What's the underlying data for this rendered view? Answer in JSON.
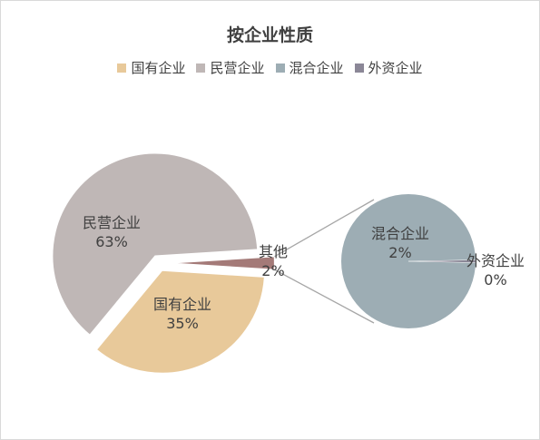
{
  "chart_data": {
    "type": "pie",
    "subtype": "pie-of-pie",
    "title": "按企业性质",
    "legend_position": "top",
    "legend": [
      {
        "label": "国有企业",
        "color": "#e8c99a"
      },
      {
        "label": "民营企业",
        "color": "#bfb7b6"
      },
      {
        "label": "混合企业",
        "color": "#9dadb4"
      },
      {
        "label": "外资企业",
        "color": "#8b8797"
      }
    ],
    "main_pie": {
      "slices": [
        {
          "label": "民营企业",
          "value": 63,
          "display": "63%",
          "color": "#bfb7b6"
        },
        {
          "label": "国有企业",
          "value": 35,
          "display": "35%",
          "color": "#e8c99a"
        },
        {
          "label": "其他",
          "value": 2,
          "display": "2%",
          "color": "#a47a78"
        }
      ]
    },
    "secondary_pie": {
      "slices": [
        {
          "label": "混合企业",
          "value": 2,
          "display": "2%",
          "color": "#9dadb4"
        },
        {
          "label": "外资企业",
          "value": 0,
          "display": "0%",
          "color": "#8b8797"
        }
      ]
    }
  }
}
